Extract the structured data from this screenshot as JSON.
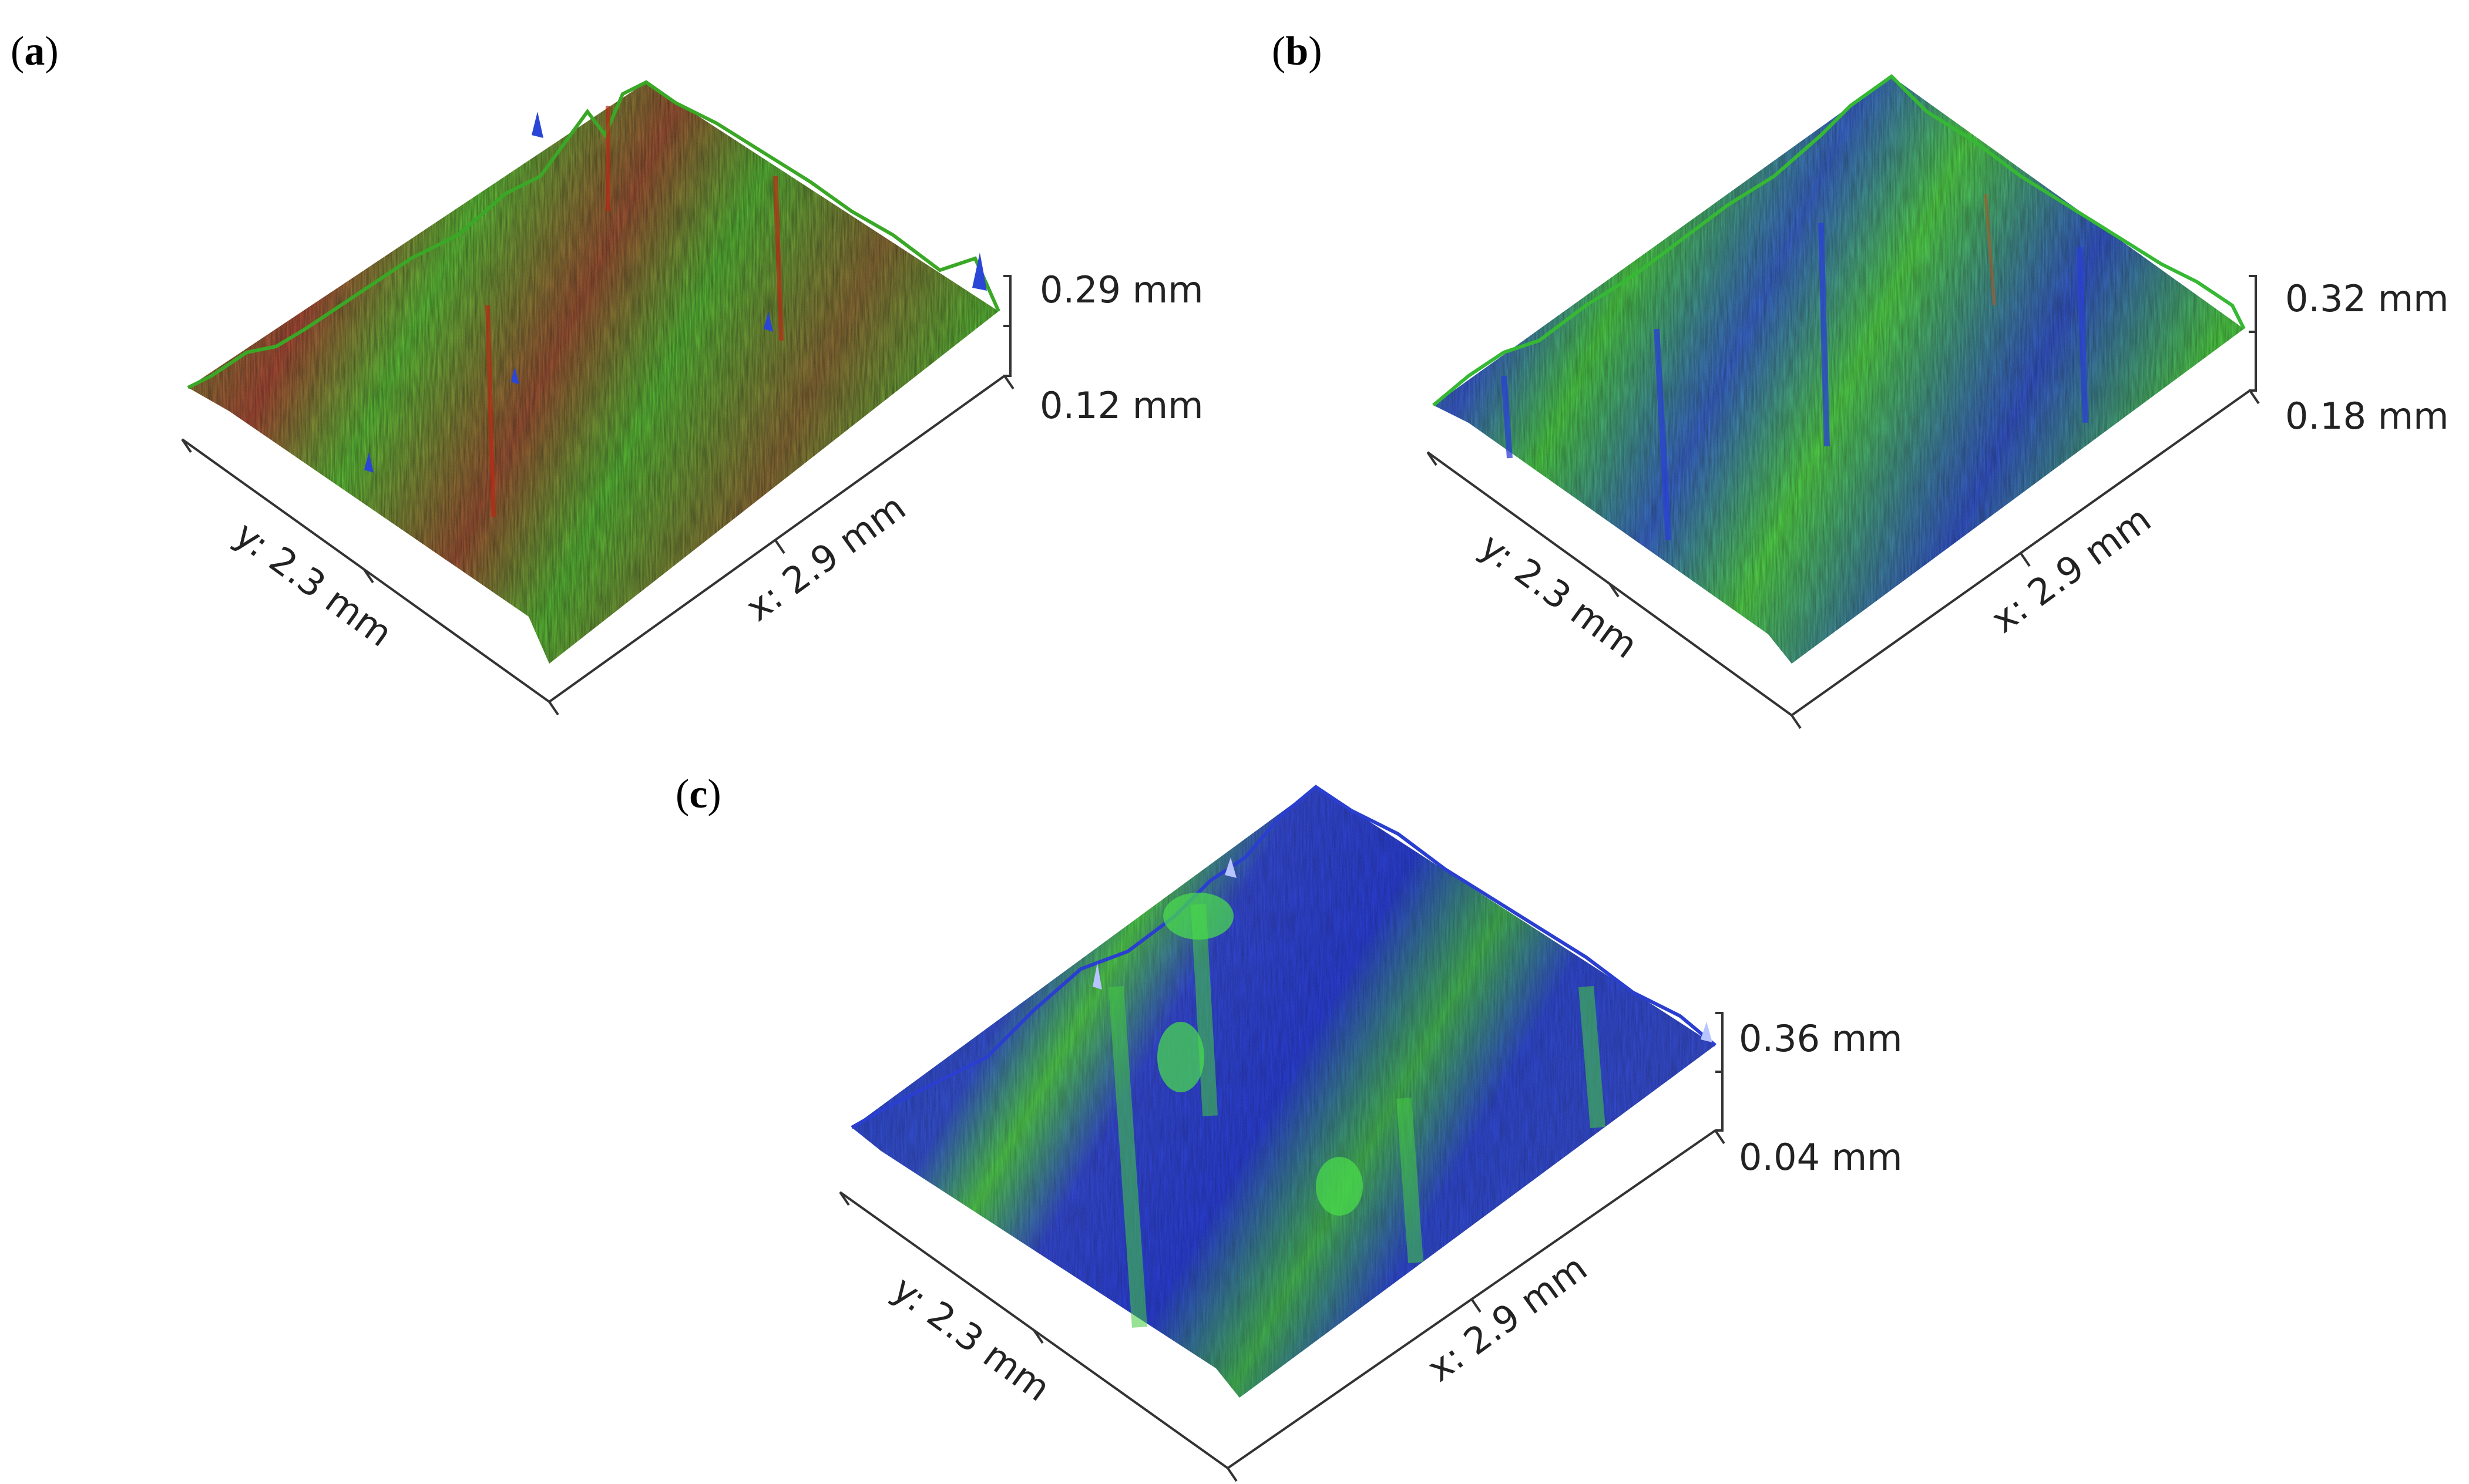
{
  "panels": [
    {
      "id": "a",
      "label": "a",
      "x_axis_label": "x: 2.9 mm",
      "y_axis_label": "y: 2.3 mm",
      "z_top_label": "0.29 mm",
      "z_bottom_label": "0.12 mm",
      "colors": {
        "base": "#4cc42a",
        "secondary": "#c23a1c",
        "accent": "#1e3fd0"
      }
    },
    {
      "id": "b",
      "label": "b",
      "x_axis_label": "x: 2.9 mm",
      "y_axis_label": "y: 2.3 mm",
      "z_top_label": "0.32 mm",
      "z_bottom_label": "0.18 mm",
      "colors": {
        "base": "#3ed23a",
        "secondary": "#2f56d8",
        "accent": "#b4542a"
      }
    },
    {
      "id": "c",
      "label": "c",
      "x_axis_label": "x: 2.9 mm",
      "y_axis_label": "y: 2.3 mm",
      "z_top_label": "0.36 mm",
      "z_bottom_label": "0.04 mm",
      "colors": {
        "base": "#2a3fd4",
        "secondary": "#3fd23f",
        "accent": "#6f84ff"
      }
    }
  ]
}
